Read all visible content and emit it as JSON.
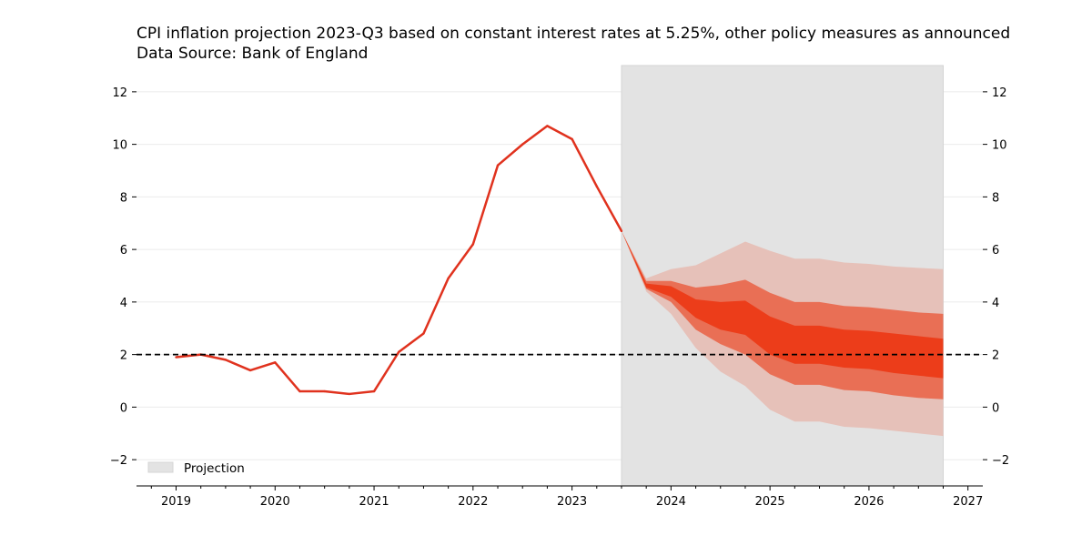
{
  "chart_data": {
    "type": "line",
    "title": "CPI inflation projection 2023-Q3 based on constant interest rates at 5.25%, other policy measures as announced",
    "subtitle": "Data Source: Bank of England",
    "xlabel": "",
    "ylabel": "",
    "xlim": [
      2018.6,
      2027.15
    ],
    "ylim": [
      -3,
      13
    ],
    "x_ticks": [
      2019,
      2020,
      2021,
      2022,
      2023,
      2024,
      2025,
      2026,
      2027
    ],
    "y_ticks": [
      -2,
      0,
      2,
      4,
      6,
      8,
      10,
      12
    ],
    "grid": "horizontal",
    "target_line": 2,
    "projection_region": {
      "start": 2023.5,
      "end": 2026.75
    },
    "legend": {
      "position": "bottom-left",
      "label": "Projection"
    },
    "colors": {
      "line": "#e0321e",
      "band_inner": "#ec3d1a",
      "band_middle": "#e96f55",
      "band_outer": "#e6c1b9",
      "projection_shade": "#e3e3e3",
      "target": "#000000"
    },
    "series": [
      {
        "x": [
          2019.0,
          2019.25,
          2019.5,
          2019.75,
          2020.0,
          2020.25,
          2020.5,
          2020.75,
          2021.0,
          2021.25,
          2021.5,
          2021.75,
          2022.0,
          2022.25,
          2022.5,
          2022.75,
          2023.0,
          2023.25,
          2023.5
        ],
        "values": [
          1.9,
          2.0,
          1.8,
          1.4,
          1.7,
          0.6,
          0.6,
          0.5,
          0.6,
          2.1,
          2.8,
          4.9,
          6.2,
          9.2,
          10.0,
          10.7,
          10.2,
          8.4,
          6.7
        ]
      }
    ],
    "fan_bands": {
      "x": [
        2023.5,
        2023.75,
        2024.0,
        2024.25,
        2024.5,
        2024.75,
        2025.0,
        2025.25,
        2025.5,
        2025.75,
        2026.0,
        2026.25,
        2026.5,
        2026.75
      ],
      "outer_upper": [
        6.7,
        4.9,
        5.25,
        5.4,
        5.85,
        6.3,
        5.95,
        5.65,
        5.65,
        5.5,
        5.45,
        5.35,
        5.3,
        5.25
      ],
      "middle_upper": [
        6.7,
        4.8,
        4.8,
        4.55,
        4.65,
        4.85,
        4.35,
        4.0,
        4.0,
        3.85,
        3.8,
        3.7,
        3.6,
        3.55
      ],
      "inner_upper": [
        6.7,
        4.7,
        4.6,
        4.1,
        4.0,
        4.05,
        3.45,
        3.1,
        3.1,
        2.95,
        2.9,
        2.8,
        2.7,
        2.6
      ],
      "inner_lower": [
        6.7,
        4.55,
        4.2,
        3.4,
        2.95,
        2.75,
        2.0,
        1.65,
        1.65,
        1.5,
        1.45,
        1.3,
        1.2,
        1.1
      ],
      "middle_lower": [
        6.7,
        4.5,
        4.0,
        2.95,
        2.4,
        2.0,
        1.25,
        0.85,
        0.85,
        0.65,
        0.6,
        0.45,
        0.35,
        0.3
      ],
      "outer_lower": [
        6.7,
        4.4,
        3.55,
        2.25,
        1.35,
        0.8,
        -0.1,
        -0.55,
        -0.55,
        -0.75,
        -0.8,
        -0.9,
        -1.0,
        -1.1
      ]
    }
  }
}
